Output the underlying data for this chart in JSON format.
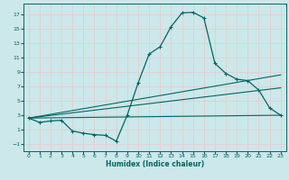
{
  "title": "",
  "xlabel": "Humidex (Indice chaleur)",
  "bg_color": "#cce8ea",
  "grid_color": "#e8c8c8",
  "line_color": "#006666",
  "xlim": [
    -0.5,
    23.5
  ],
  "ylim": [
    -2,
    18.5
  ],
  "xticks": [
    0,
    1,
    2,
    3,
    4,
    5,
    6,
    7,
    8,
    9,
    10,
    11,
    12,
    13,
    14,
    15,
    16,
    17,
    18,
    19,
    20,
    21,
    22,
    23
  ],
  "yticks": [
    -1,
    1,
    3,
    5,
    7,
    9,
    11,
    13,
    15,
    17
  ],
  "line1_x": [
    0,
    1,
    2,
    3,
    4,
    5,
    6,
    7,
    8,
    9,
    10,
    11,
    12,
    13,
    14,
    15,
    16,
    17,
    18,
    19,
    20,
    21,
    22,
    23
  ],
  "line1_y": [
    2.6,
    2.0,
    2.2,
    2.3,
    0.8,
    0.5,
    0.3,
    0.2,
    -0.6,
    3.0,
    7.5,
    11.5,
    12.5,
    15.3,
    17.2,
    17.3,
    16.5,
    10.2,
    8.8,
    8.0,
    7.8,
    6.5,
    4.0,
    3.0
  ],
  "line2_x": [
    0,
    23
  ],
  "line2_y": [
    2.6,
    3.0
  ],
  "line3_x": [
    0,
    23
  ],
  "line3_y": [
    2.6,
    6.8
  ],
  "line4_x": [
    0,
    23
  ],
  "line4_y": [
    2.6,
    8.6
  ]
}
